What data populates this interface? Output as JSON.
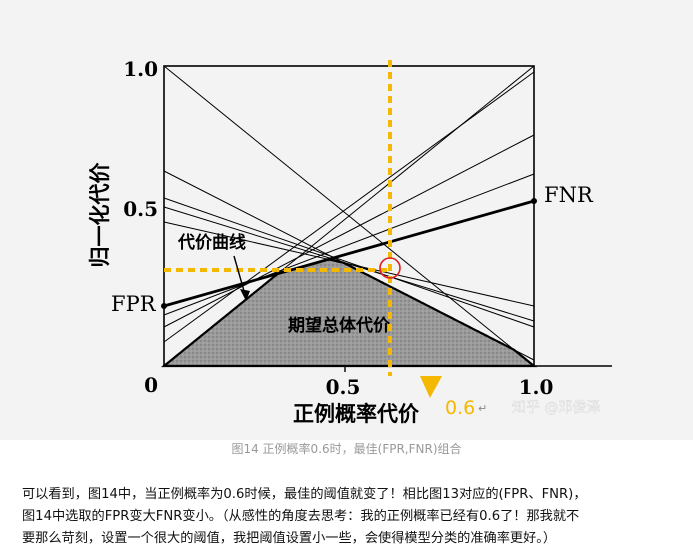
{
  "figure": {
    "y_axis_label": "归一化代价",
    "x_axis_label": "正例概率代价",
    "ticks_x": [
      "0",
      "0.5",
      "1.0"
    ],
    "ticks_y": [
      "0",
      "0.5",
      "1.0"
    ],
    "label_fnr": "FNR",
    "label_fpr": "FPR",
    "label_cost_curve": "代价曲线",
    "label_expected_cost": "期望总体代价",
    "annotation_value": "0.6",
    "return_mark": "↵",
    "watermark": "知乎 @邓俊泽",
    "colors": {
      "highlight": "#f5b800",
      "circle": "#e02020",
      "shade": "#8a8a8a"
    }
  },
  "chart_data": {
    "type": "line",
    "xlabel": "正例概率代价",
    "ylabel": "归一化代价",
    "xlim": [
      0,
      1
    ],
    "ylim": [
      0,
      1
    ],
    "lines": [
      {
        "x": [
          0,
          1
        ],
        "y": [
          0.2,
          0.55
        ]
      },
      {
        "x": [
          0,
          1
        ],
        "y": [
          0.17,
          0.64
        ]
      },
      {
        "x": [
          0,
          1
        ],
        "y": [
          0.13,
          0.77
        ]
      },
      {
        "x": [
          0,
          1
        ],
        "y": [
          0.08,
          0.98
        ]
      },
      {
        "x": [
          0,
          1
        ],
        "y": [
          0,
          1.0
        ]
      },
      {
        "x": [
          0,
          1
        ],
        "y": [
          1.0,
          0
        ]
      },
      {
        "x": [
          0,
          1
        ],
        "y": [
          0.65,
          0.02
        ]
      },
      {
        "x": [
          0,
          1
        ],
        "y": [
          0.56,
          0.13
        ]
      },
      {
        "x": [
          0,
          1
        ],
        "y": [
          0.53,
          0.15
        ]
      },
      {
        "x": [
          0,
          1
        ],
        "y": [
          0.48,
          0.2
        ]
      }
    ],
    "highlight": {
      "x": 0.6,
      "y": 0.32
    }
  },
  "caption": "图14 正例概率0.6时，最佳(FPR,FNR)组合",
  "paragraph": [
    "可以看到，图14中，当正例概率为0.6时候，最佳的阈值就变了！相比图13对应的(FPR、FNR)，",
    "图14中选取的FPR变大FNR变小。（从感性的角度去思考：我的正例概率已经有0.6了！那我就不",
    "要那么苛刻，设置一个很大的阈值，我把阈值设置小一些，会使得模型分类的准确率更好。）"
  ]
}
